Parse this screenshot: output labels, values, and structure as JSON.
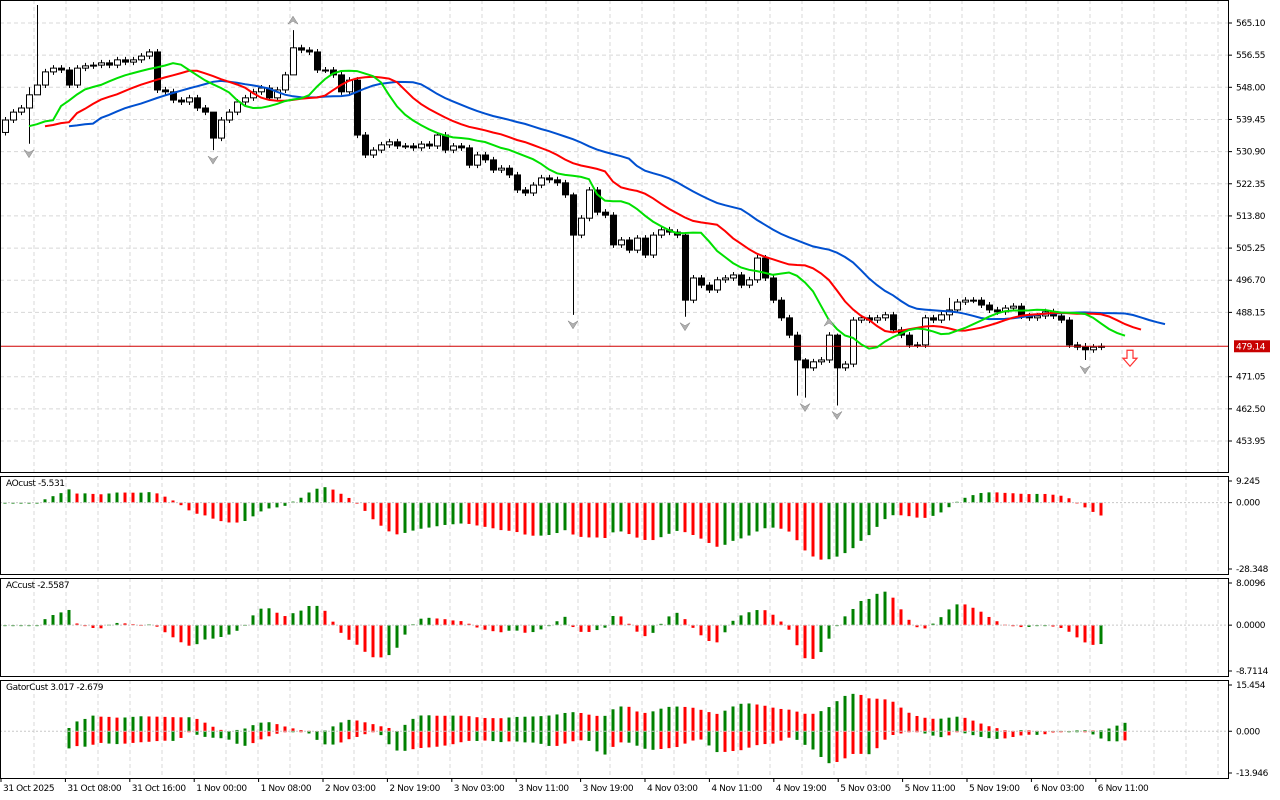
{
  "main": {
    "price_ticks": [
      "565.10",
      "556.55",
      "548.00",
      "539.45",
      "530.90",
      "522.35",
      "513.80",
      "505.25",
      "496.70",
      "488.15",
      "471.05",
      "462.50",
      "453.95"
    ],
    "price_range": [
      453.95,
      565.1
    ],
    "current_price": "479.14",
    "current_price_value": 479.14,
    "signal_arrow": "down-arrow-icon",
    "colors": {
      "jaw": "#0050d0",
      "teeth": "#ff0000",
      "lips": "#00e000",
      "bull_bar": "#008000",
      "bear_bar": "#ff0000",
      "price_line": "#d00000"
    },
    "candles_close": [
      539.3,
      541.4,
      542.5,
      546.0,
      548.6,
      552.1,
      553.1,
      552.6,
      548.6,
      553.1,
      553.7,
      553.9,
      554.5,
      553.9,
      555.3,
      554.7,
      555.3,
      556.3,
      557.4,
      547.3,
      546.8,
      544.6,
      544.1,
      545.2,
      542.5,
      541.4,
      534.5,
      539.3,
      541.4,
      544.1,
      545.2,
      546.8,
      547.8,
      545.2,
      547.3,
      551.3,
      558.5,
      557.9,
      557.4,
      552.6,
      552.6,
      551.3,
      546.8,
      549.9,
      535.3,
      530.0,
      531.3,
      532.7,
      533.5,
      532.4,
      532.4,
      531.9,
      532.9,
      532.4,
      535.3,
      531.3,
      532.4,
      531.9,
      527.3,
      530.0,
      528.7,
      526.0,
      526.5,
      524.7,
      520.7,
      519.9,
      522.0,
      523.9,
      523.4,
      522.6,
      519.4,
      508.7,
      513.2,
      520.7,
      514.8,
      514.0,
      506.1,
      507.4,
      504.7,
      507.9,
      503.4,
      508.7,
      510.1,
      509.5,
      508.7,
      491.4,
      497.3,
      495.4,
      494.1,
      496.8,
      497.3,
      498.1,
      495.4,
      496.8,
      502.6,
      497.3,
      491.4,
      486.7,
      482.1,
      475.5,
      473.4,
      475.0,
      475.5,
      482.1,
      473.4,
      474.4,
      486.1,
      486.7,
      486.1,
      486.7,
      487.5,
      483.5,
      482.1,
      479.5,
      479.5,
      486.7,
      486.1,
      487.5,
      488.8,
      490.9,
      491.4,
      491.4,
      490.1,
      488.8,
      488.3,
      489.3,
      489.8,
      487.2,
      486.7,
      487.2,
      488.3,
      487.2,
      486.1,
      479.5,
      478.9,
      478.2,
      478.9,
      479.14
    ],
    "first_open": 536.0,
    "long_wicks": [
      {
        "i": 3,
        "high": 548.0,
        "low": 533.0
      },
      {
        "i": 4,
        "high": 569.9,
        "low": 546.0
      },
      {
        "i": 26,
        "high": 541.4,
        "low": 531.3
      },
      {
        "i": 36,
        "high": 563.2,
        "low": 551.3
      },
      {
        "i": 71,
        "high": 520.0,
        "low": 487.5
      },
      {
        "i": 85,
        "high": 509.0,
        "low": 487.0
      },
      {
        "i": 99,
        "high": 483.0,
        "low": 466.0
      },
      {
        "i": 100,
        "high": 476.0,
        "low": 465.5
      },
      {
        "i": 104,
        "high": 482.5,
        "low": 463.4
      },
      {
        "i": 118,
        "high": 492.0,
        "low": 486.0
      },
      {
        "i": 135,
        "high": 480.0,
        "low": 475.5
      }
    ]
  },
  "ao": {
    "title": "AOcust -5.531",
    "ticks": [
      "9.245",
      "0.000",
      "-28.348"
    ],
    "range": [
      -28.348,
      9.245
    ]
  },
  "ac": {
    "title": "ACcust -2.5587",
    "ticks": [
      "8.0096",
      "0.0000",
      "-8.7114"
    ],
    "range": [
      -8.7114,
      8.0096
    ]
  },
  "gator": {
    "title": "GatorCust 3.017 -2.679",
    "ticks": [
      "15.454",
      "0.000",
      "-13.946"
    ],
    "range": [
      -13.946,
      15.454
    ]
  },
  "time_axis": [
    "31 Oct 2025",
    "31 Oct 08:00",
    "31 Oct 16:00",
    "1 Nov 00:00",
    "1 Nov 08:00",
    "2 Nov 03:00",
    "2 Nov 19:00",
    "3 Nov 03:00",
    "3 Nov 11:00",
    "3 Nov 19:00",
    "4 Nov 03:00",
    "4 Nov 11:00",
    "4 Nov 19:00",
    "5 Nov 03:00",
    "5 Nov 11:00",
    "5 Nov 19:00",
    "6 Nov 03:00",
    "6 Nov 11:00"
  ]
}
